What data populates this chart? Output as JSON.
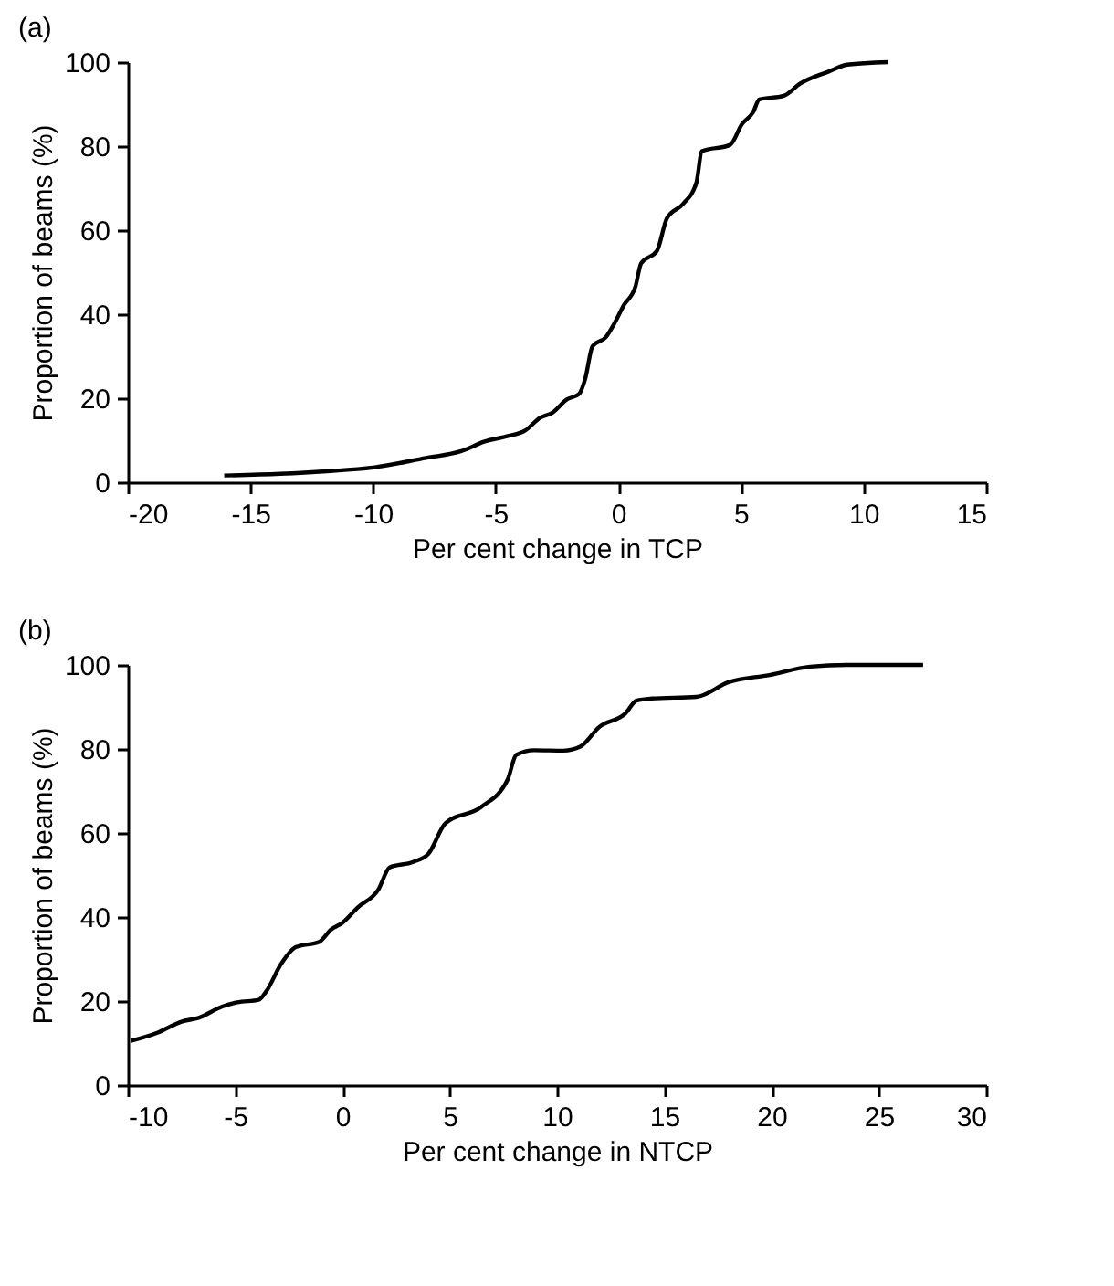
{
  "chart_data": [
    {
      "type": "line",
      "title": "(a)",
      "xlabel": "Per cent change in TCP",
      "ylabel": "Proportion of beams (%)",
      "xlim": [
        -20,
        15
      ],
      "xticks": [
        -20,
        -15,
        -10,
        -5,
        0,
        5,
        10,
        15
      ],
      "ylim": [
        0,
        100
      ],
      "yticks": [
        0,
        20,
        40,
        60,
        80,
        100
      ],
      "grid": false,
      "marker": "none",
      "line_style": "solid",
      "series": [
        {
          "color": "#000000",
          "x": [
            -16.07,
            -13.8,
            -11.9,
            -10.0,
            -7.84,
            -6.4,
            -5.45,
            -4.5,
            -3.8,
            -3.2,
            -2.7,
            -2.1,
            -1.6,
            -1.35,
            -1.05,
            -0.5,
            -0.16,
            0.22,
            0.7,
            0.93,
            1.58,
            1.98,
            2.65,
            3.18,
            3.41,
            4.56,
            5.04,
            5.5,
            5.75,
            6.75,
            7.42,
            8.6,
            9.33,
            11.0
          ],
          "values": [
            1.6,
            2.0,
            2.6,
            3.5,
            5.8,
            7.4,
            9.7,
            11.0,
            12.3,
            15.3,
            16.5,
            19.7,
            21.0,
            24.6,
            32.4,
            34.6,
            37.8,
            42.1,
            46.6,
            52.1,
            55.1,
            62.8,
            66.3,
            71.2,
            78.8,
            80.3,
            85.2,
            88.1,
            91.1,
            92.0,
            94.9,
            97.8,
            99.4,
            100
          ]
        }
      ]
    },
    {
      "type": "line",
      "title": "(b)",
      "xlabel": "Per cent change in NTCP",
      "ylabel": "Proportion of beams (%)",
      "xlim": [
        -10,
        30
      ],
      "xticks": [
        -10,
        -5,
        0,
        5,
        10,
        15,
        20,
        25,
        30
      ],
      "ylim": [
        0,
        100
      ],
      "yticks": [
        0,
        20,
        40,
        60,
        80,
        100
      ],
      "grid": false,
      "marker": "none",
      "line_style": "solid",
      "series": [
        {
          "color": "#000000",
          "x": [
            -9.86,
            -8.6,
            -7.5,
            -6.7,
            -5.6,
            -4.9,
            -3.9,
            -3.55,
            -2.86,
            -2.18,
            -1.08,
            -0.53,
            0.02,
            0.7,
            1.67,
            2.2,
            3.3,
            4.0,
            4.8,
            6.47,
            7.7,
            8.1,
            8.94,
            10.3,
            11.1,
            11.96,
            13.2,
            13.7,
            14.4,
            16.5,
            18.0,
            19.9,
            21.8,
            23.5,
            27.06
          ],
          "values": [
            10.5,
            12.5,
            15.1,
            16.0,
            18.7,
            19.7,
            20.3,
            22.3,
            28.8,
            32.8,
            34.1,
            37.0,
            38.7,
            42.2,
            46.5,
            51.8,
            53.1,
            55.0,
            62.3,
            66.2,
            72.7,
            78.6,
            79.7,
            79.6,
            80.6,
            85.2,
            88.5,
            91.5,
            92.0,
            92.4,
            95.9,
            97.6,
            99.6,
            100,
            100
          ]
        }
      ]
    }
  ]
}
